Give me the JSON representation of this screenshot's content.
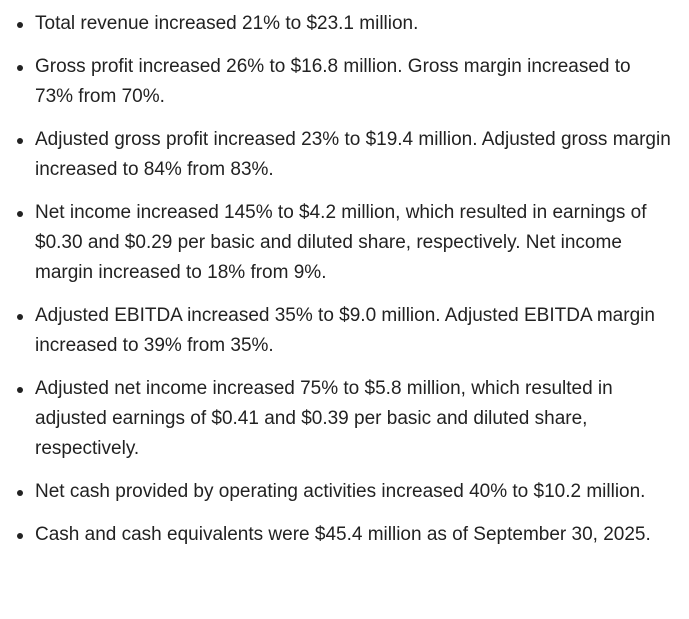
{
  "items": [
    "Total revenue increased 21% to $23.1 million.",
    "Gross profit increased 26% to $16.8 million. Gross margin increased to 73% from 70%.",
    "Adjusted gross profit increased 23% to $19.4 million. Adjusted gross margin increased to 84% from 83%.",
    "Net income increased 145% to $4.2 million, which resulted in earnings of $0.30 and $0.29 per basic and diluted share, respectively. Net income margin increased to 18% from 9%.",
    "Adjusted EBITDA increased 35% to $9.0 million. Adjusted EBITDA margin increased to 39% from 35%.",
    "Adjusted net income increased 75% to $5.8 million, which resulted in adjusted earnings of $0.41 and $0.39 per basic and diluted share, respectively.",
    "Net cash provided by operating activities increased 40% to $10.2 million.",
    "Cash and cash equivalents were $45.4 million as of September 30, 2025."
  ]
}
